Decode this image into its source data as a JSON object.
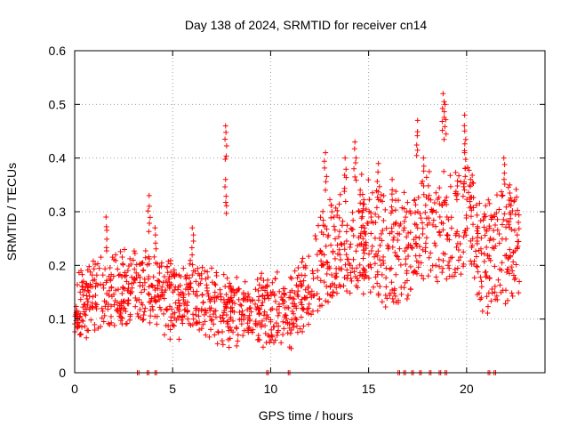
{
  "chart_data": {
    "type": "scatter",
    "title": "Day 138 of 2024, SRMTID for receiver cn14",
    "xlabel": "GPS time / hours",
    "ylabel": "SRMTID / TECUs",
    "xlim": [
      0,
      24
    ],
    "ylim": [
      0,
      0.6
    ],
    "xticks": [
      0,
      5,
      10,
      15,
      20
    ],
    "xtick_labels": [
      "0",
      "5",
      "10",
      "15",
      "20"
    ],
    "yticks": [
      0,
      0.1,
      0.2,
      0.3,
      0.4,
      0.5,
      0.6
    ],
    "ytick_labels": [
      "0",
      "0.1",
      "0.2",
      "0.3",
      "0.4",
      "0.5",
      "0.6"
    ],
    "grid": true,
    "marker": "+",
    "color": "#ff0000",
    "x_end_hours": 22.7,
    "baseline_level": [
      {
        "x": 0.0,
        "y": 0.12
      },
      {
        "x": 1.0,
        "y": 0.14
      },
      {
        "x": 2.0,
        "y": 0.15
      },
      {
        "x": 3.0,
        "y": 0.16
      },
      {
        "x": 4.0,
        "y": 0.15
      },
      {
        "x": 5.0,
        "y": 0.14
      },
      {
        "x": 6.0,
        "y": 0.14
      },
      {
        "x": 7.0,
        "y": 0.13
      },
      {
        "x": 8.0,
        "y": 0.12
      },
      {
        "x": 9.0,
        "y": 0.11
      },
      {
        "x": 10.0,
        "y": 0.12
      },
      {
        "x": 11.0,
        "y": 0.11
      },
      {
        "x": 12.0,
        "y": 0.16
      },
      {
        "x": 13.0,
        "y": 0.22
      },
      {
        "x": 14.0,
        "y": 0.24
      },
      {
        "x": 15.0,
        "y": 0.26
      },
      {
        "x": 16.0,
        "y": 0.22
      },
      {
        "x": 17.0,
        "y": 0.24
      },
      {
        "x": 18.0,
        "y": 0.26
      },
      {
        "x": 19.0,
        "y": 0.27
      },
      {
        "x": 20.0,
        "y": 0.29
      },
      {
        "x": 21.0,
        "y": 0.21
      },
      {
        "x": 22.0,
        "y": 0.24
      },
      {
        "x": 22.7,
        "y": 0.24
      }
    ],
    "spike_points": [
      {
        "x": 1.6,
        "y": 0.29
      },
      {
        "x": 3.8,
        "y": 0.33
      },
      {
        "x": 4.1,
        "y": 0.27
      },
      {
        "x": 6.0,
        "y": 0.27
      },
      {
        "x": 7.7,
        "y": 0.46
      },
      {
        "x": 7.7,
        "y": 0.36
      },
      {
        "x": 12.8,
        "y": 0.41
      },
      {
        "x": 13.8,
        "y": 0.4
      },
      {
        "x": 14.3,
        "y": 0.43
      },
      {
        "x": 15.5,
        "y": 0.39
      },
      {
        "x": 16.2,
        "y": 0.36
      },
      {
        "x": 17.5,
        "y": 0.47
      },
      {
        "x": 17.8,
        "y": 0.4
      },
      {
        "x": 18.8,
        "y": 0.52
      },
      {
        "x": 18.9,
        "y": 0.5
      },
      {
        "x": 19.9,
        "y": 0.48
      },
      {
        "x": 19.9,
        "y": 0.41
      },
      {
        "x": 20.2,
        "y": 0.36
      },
      {
        "x": 21.9,
        "y": 0.4
      },
      {
        "x": 22.2,
        "y": 0.35
      }
    ],
    "zero_points_x": [
      3.2,
      3.7,
      4.1,
      9.8,
      10.9,
      16.5,
      16.8,
      17.2,
      17.6,
      18.1,
      18.6,
      18.9,
      21.1,
      21.4
    ]
  }
}
